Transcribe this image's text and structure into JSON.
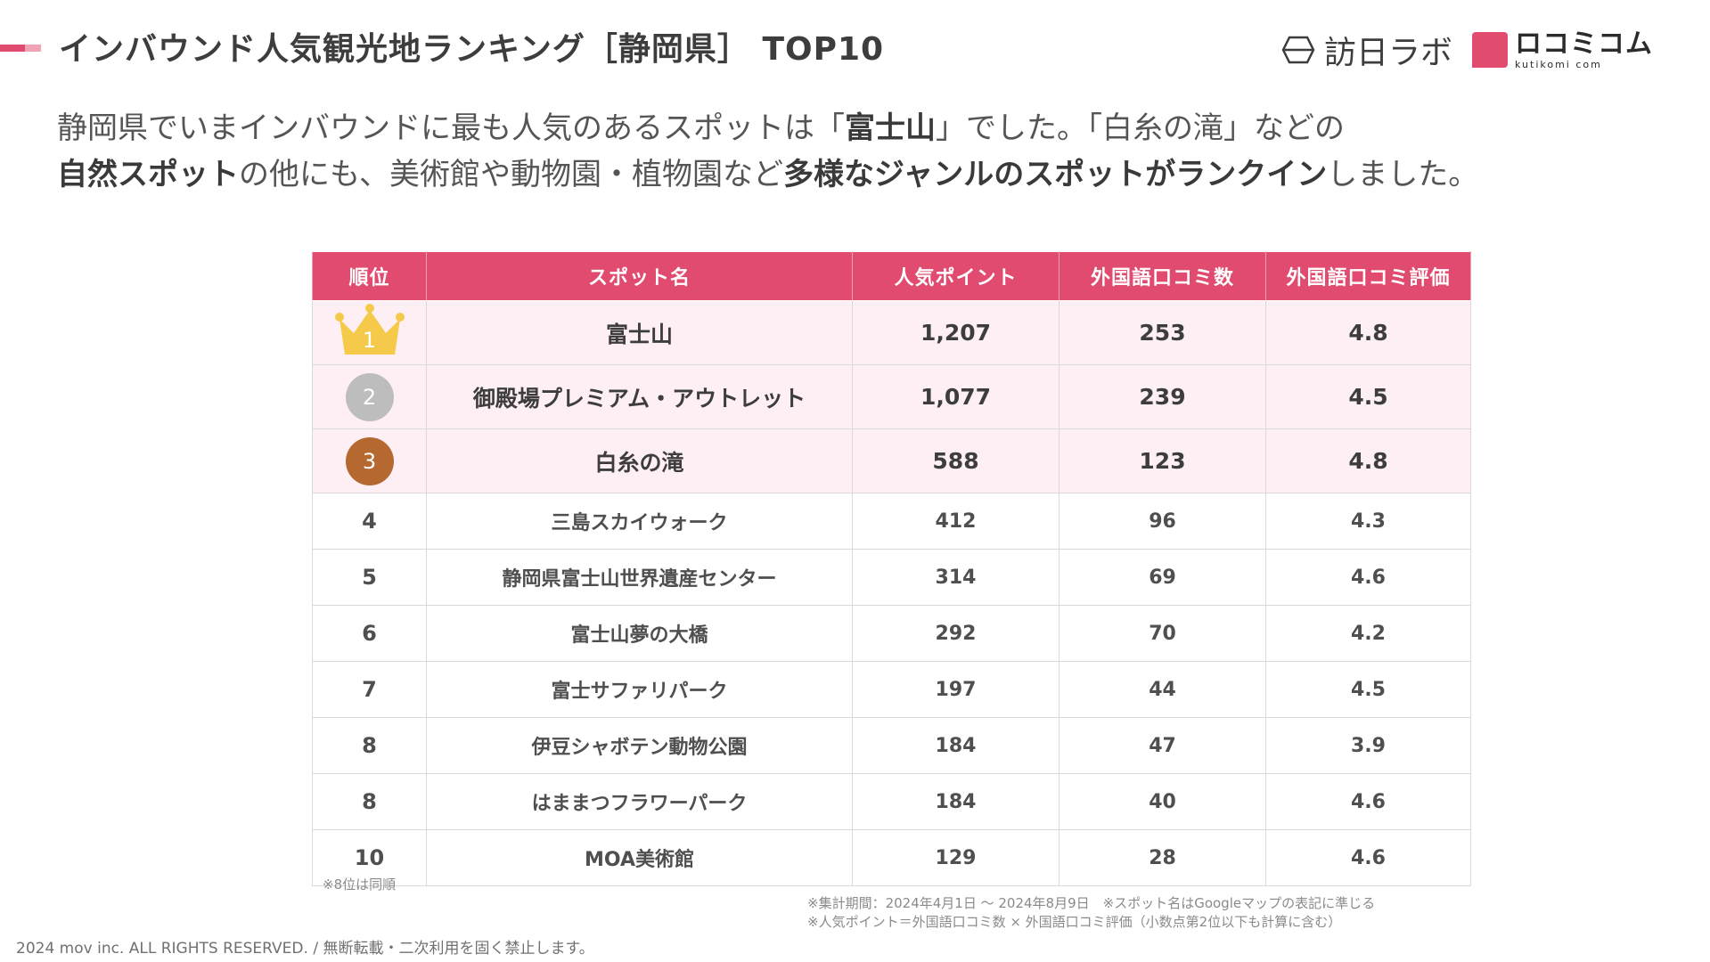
{
  "header": {
    "title": "インバウンド人気観光地ランキング［静岡県］ TOP10",
    "logo_houjin_text": "訪日ラボ",
    "logo_kutikomi_big": "ロコミコム",
    "logo_kutikomi_small": "kutikomi com",
    "accent_color": "#e14b6f"
  },
  "intro": {
    "line1_a": "静岡県でいまインバウンドに最も人気のあるスポットは「",
    "line1_b": "富士山",
    "line1_c": "」でした。「白糸の滝」などの",
    "line2_a": "自然スポット",
    "line2_b": "の他にも、美術館や動物園・植物園など",
    "line2_c": "多様なジャンルのスポットがランクイン",
    "line2_d": "しました。"
  },
  "table": {
    "headers": [
      "順位",
      "スポット名",
      "人気ポイント",
      "外国語口コミ数",
      "外国語口コミ評価"
    ],
    "rows": [
      {
        "rank": "1",
        "name": "富士山",
        "points": "1,207",
        "reviews": "253",
        "rating": "4.8"
      },
      {
        "rank": "2",
        "name": "御殿場プレミアム・アウトレット",
        "points": "1,077",
        "reviews": "239",
        "rating": "4.5"
      },
      {
        "rank": "3",
        "name": "白糸の滝",
        "points": "588",
        "reviews": "123",
        "rating": "4.8"
      },
      {
        "rank": "4",
        "name": "三島スカイウォーク",
        "points": "412",
        "reviews": "96",
        "rating": "4.3"
      },
      {
        "rank": "5",
        "name": "静岡県富士山世界遺産センター",
        "points": "314",
        "reviews": "69",
        "rating": "4.6"
      },
      {
        "rank": "6",
        "name": "富士山夢の大橋",
        "points": "292",
        "reviews": "70",
        "rating": "4.2"
      },
      {
        "rank": "7",
        "name": "富士サファリパーク",
        "points": "197",
        "reviews": "44",
        "rating": "4.5"
      },
      {
        "rank": "8",
        "name": "伊豆シャボテン動物公園",
        "points": "184",
        "reviews": "47",
        "rating": "3.9"
      },
      {
        "rank": "8",
        "name": "はままつフラワーパーク",
        "points": "184",
        "reviews": "40",
        "rating": "4.6"
      },
      {
        "rank": "10",
        "name": "MOA美術館",
        "points": "129",
        "reviews": "28",
        "rating": "4.6"
      }
    ],
    "medal_colors": {
      "gold": "#f5c94a",
      "silver": "#bdbdbd",
      "bronze": "#b5682f"
    }
  },
  "notes": {
    "tie": "※8位は同順",
    "line1": "※集計期間：2024年4月1日 〜 2024年8月9日　※スポット名はGoogleマップの表記に準じる",
    "line2": "※人気ポイント＝外国語口コミ数 × 外国語口コミ評価（小数点第2位以下も計算に含む）"
  },
  "footer": {
    "copyright": "2024 mov inc. ALL RIGHTS RESERVED. / 無断転載・二次利用を固く禁止します。"
  }
}
